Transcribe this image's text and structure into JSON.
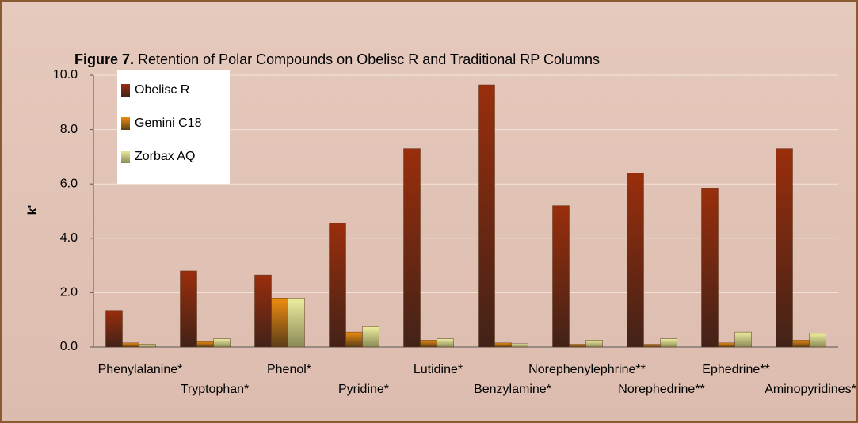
{
  "chart_data": {
    "type": "bar",
    "title_label": "Figure 7.",
    "title": "Retention of Polar Compounds on Obelisc R and Traditional RP Columns",
    "ylabel": "k'",
    "categories": [
      "Phenylalanine*",
      "Tryptophan*",
      "Phenol*",
      "Pyridine*",
      "Lutidine*",
      "Benzylamine*",
      "Norephenylephrine**",
      "Norephedrine**",
      "Ephedrine**",
      "Aminopyridines*"
    ],
    "series": [
      {
        "name": "Obelisc R",
        "color": "#9a2e0c",
        "values": [
          1.35,
          2.8,
          2.65,
          4.55,
          7.3,
          9.65,
          5.2,
          6.4,
          5.85,
          7.3
        ]
      },
      {
        "name": "Gemini C18",
        "color": "#ee8c10",
        "values": [
          0.15,
          0.2,
          1.8,
          0.55,
          0.25,
          0.15,
          0.1,
          0.1,
          0.15,
          0.25
        ]
      },
      {
        "name": "Zorbax AQ",
        "color": "#eeeea0",
        "values": [
          0.1,
          0.3,
          1.8,
          0.75,
          0.3,
          0.12,
          0.25,
          0.3,
          0.55,
          0.5
        ]
      }
    ],
    "ylim": [
      0,
      10
    ],
    "yticks": [
      {
        "value": 0,
        "label": "0.0"
      },
      {
        "value": 2,
        "label": "2.0"
      },
      {
        "value": 4,
        "label": "4.0"
      },
      {
        "value": 6,
        "label": "6.0"
      },
      {
        "value": 8,
        "label": "8.0"
      },
      {
        "value": 10,
        "label": "10.0"
      }
    ],
    "grid": true,
    "legend": "upper left"
  }
}
